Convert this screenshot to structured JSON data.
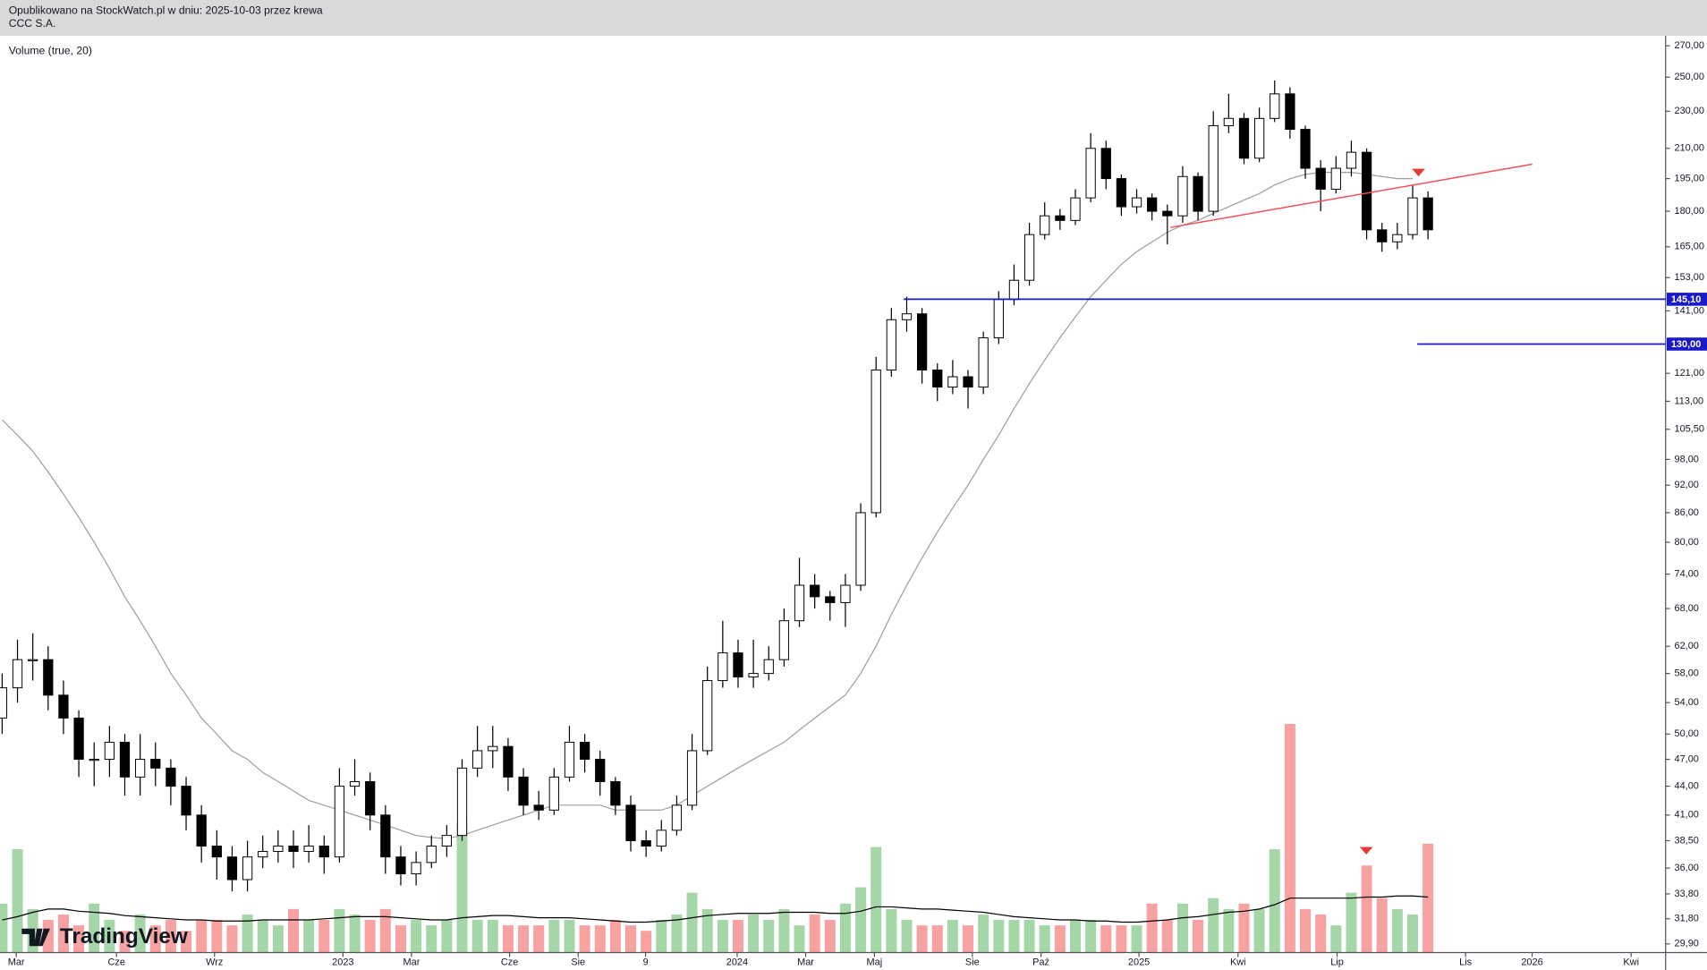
{
  "header": {
    "published": "Opublikowano na StockWatch.pl w dniu: 2025-10-03 przez krewa",
    "symbol": "CCC S.A."
  },
  "chart_data": {
    "type": "candlestick",
    "indicator_label": "Volume (true, 20)",
    "watermark": "TradingView",
    "log_scale": true,
    "ylim": [
      29.27,
      276.6
    ],
    "yticks": [
      {
        "value": 270,
        "label": "270,00"
      },
      {
        "value": 250,
        "label": "250,00"
      },
      {
        "value": 230,
        "label": "230,00"
      },
      {
        "value": 210,
        "label": "210,00"
      },
      {
        "value": 195,
        "label": "195,00"
      },
      {
        "value": 180,
        "label": "180,00"
      },
      {
        "value": 165,
        "label": "165,00"
      },
      {
        "value": 153,
        "label": "153,00"
      },
      {
        "value": 141,
        "label": "141,00"
      },
      {
        "value": 121,
        "label": "121,00"
      },
      {
        "value": 113,
        "label": "113,00"
      },
      {
        "value": 105.5,
        "label": "105,50"
      },
      {
        "value": 98,
        "label": "98,00"
      },
      {
        "value": 92,
        "label": "92,00"
      },
      {
        "value": 86,
        "label": "86,00"
      },
      {
        "value": 80,
        "label": "80,00"
      },
      {
        "value": 74,
        "label": "74,00"
      },
      {
        "value": 68,
        "label": "68,00"
      },
      {
        "value": 62,
        "label": "62,00"
      },
      {
        "value": 58,
        "label": "58,00"
      },
      {
        "value": 54,
        "label": "54,00"
      },
      {
        "value": 50,
        "label": "50,00"
      },
      {
        "value": 47,
        "label": "47,00"
      },
      {
        "value": 44,
        "label": "44,00"
      },
      {
        "value": 41,
        "label": "41,00"
      },
      {
        "value": 38.5,
        "label": "38,50"
      },
      {
        "value": 36,
        "label": "36,00"
      },
      {
        "value": 33.8,
        "label": "33,80"
      },
      {
        "value": 31.8,
        "label": "31,80"
      },
      {
        "value": 29.9,
        "label": "29,90"
      }
    ],
    "xlim": [
      -0.14,
      108.5
    ],
    "xticks": [
      {
        "value": 0.92,
        "label": "Mar"
      },
      {
        "value": 7.46,
        "label": "Cze"
      },
      {
        "value": 13.85,
        "label": "Wrz"
      },
      {
        "value": 22.23,
        "label": "2023"
      },
      {
        "value": 26.7,
        "label": "Mar"
      },
      {
        "value": 33.1,
        "label": "Cze"
      },
      {
        "value": 37.57,
        "label": "Sie"
      },
      {
        "value": 41.97,
        "label": "9"
      },
      {
        "value": 47.94,
        "label": "2024"
      },
      {
        "value": 52.41,
        "label": "Mar"
      },
      {
        "value": 56.89,
        "label": "Maj"
      },
      {
        "value": 63.28,
        "label": "Sie"
      },
      {
        "value": 67.76,
        "label": "Paź"
      },
      {
        "value": 74.15,
        "label": "2025"
      },
      {
        "value": 80.61,
        "label": "Kwi"
      },
      {
        "value": 87.07,
        "label": "Lip"
      },
      {
        "value": 95.45,
        "label": "Lis"
      },
      {
        "value": 99.79,
        "label": "2026"
      },
      {
        "value": 106.25,
        "label": "Kwi"
      }
    ],
    "open": [
      52,
      56,
      60,
      60,
      55,
      52,
      47,
      47,
      49,
      45,
      47,
      46,
      44,
      41,
      38,
      37,
      35,
      37,
      37.5,
      38,
      37.5,
      38,
      37,
      44,
      44.5,
      41,
      37,
      35.5,
      36.5,
      38,
      39,
      46,
      48,
      48.5,
      45,
      42,
      41.5,
      45,
      49,
      47,
      44.5,
      42,
      38.5,
      38,
      39.5,
      42,
      48,
      57,
      61,
      57.5,
      58,
      60,
      66,
      72,
      70,
      69,
      72,
      86,
      122,
      138,
      140,
      122,
      117,
      120,
      117,
      132,
      145,
      152,
      170,
      178,
      176,
      186,
      210,
      195,
      182,
      186,
      180,
      178,
      196,
      180,
      222,
      226,
      205,
      226,
      240,
      220,
      200,
      190,
      200,
      208,
      172,
      167,
      170,
      186
    ],
    "high": [
      58,
      63,
      64,
      62,
      57,
      53,
      49,
      51,
      50,
      50,
      49,
      47,
      45,
      42,
      39.5,
      38,
      38.5,
      39,
      39.5,
      39.5,
      40,
      39,
      46,
      47,
      45.5,
      42,
      38,
      37.5,
      39,
      40,
      47,
      51,
      51,
      49.5,
      46,
      43.5,
      46,
      51,
      50,
      48,
      45,
      43,
      39.5,
      40.5,
      43,
      50,
      59,
      66,
      63,
      63,
      62,
      68,
      77,
      74,
      71,
      74,
      88,
      126,
      142,
      146,
      142,
      124,
      125,
      122,
      134,
      148,
      158,
      175,
      184,
      181,
      190,
      218,
      214,
      197,
      190,
      188,
      183,
      201,
      198,
      230,
      240,
      229,
      232,
      248,
      244,
      222,
      204,
      206,
      214,
      210,
      175,
      175,
      192,
      189
    ],
    "low": [
      50,
      54,
      57,
      53,
      50,
      45,
      44,
      45,
      43,
      43,
      44,
      42,
      39.5,
      36.5,
      35,
      34,
      34,
      36,
      36.5,
      36,
      36.5,
      35.5,
      36.5,
      43,
      39.5,
      35.5,
      34.5,
      34.5,
      36,
      37,
      38.5,
      45,
      46,
      43.5,
      41,
      40.5,
      41,
      44.5,
      45.5,
      43,
      41,
      37.5,
      37,
      37.5,
      39,
      41.5,
      47.5,
      56,
      56,
      56,
      57,
      59,
      65,
      68,
      66,
      65,
      71,
      85,
      120,
      134,
      118,
      113,
      115,
      111,
      115,
      130,
      143,
      150,
      168,
      172,
      174,
      184,
      190,
      178,
      179,
      176,
      166,
      175,
      176,
      178,
      218,
      202,
      203,
      224,
      215,
      195,
      180,
      188,
      196,
      168,
      163,
      164,
      168,
      168
    ],
    "close": [
      56,
      60,
      60,
      55,
      52,
      47,
      47,
      49,
      45,
      47,
      46,
      44,
      41,
      38,
      37,
      35,
      37,
      37.5,
      38,
      37.5,
      38,
      37,
      44,
      44.5,
      41,
      37,
      35.5,
      36.5,
      38,
      39,
      46,
      48,
      48.5,
      45,
      42,
      41.5,
      45,
      49,
      47,
      44.5,
      42,
      38.5,
      38,
      39.5,
      42,
      48,
      57,
      61,
      57.5,
      58,
      60,
      66,
      72,
      70,
      69,
      72,
      86,
      122,
      138,
      140,
      122,
      117,
      120,
      117,
      132,
      145,
      152,
      170,
      178,
      176,
      186,
      210,
      195,
      182,
      186,
      180,
      178,
      196,
      180,
      222,
      226,
      205,
      226,
      240,
      220,
      200,
      190,
      200,
      208,
      172,
      167,
      170,
      186,
      172
    ],
    "volume": [
      45,
      95,
      40,
      30,
      35,
      25,
      45,
      30,
      20,
      35,
      25,
      30,
      20,
      30,
      30,
      25,
      35,
      30,
      25,
      40,
      30,
      30,
      40,
      35,
      30,
      40,
      25,
      30,
      25,
      30,
      120,
      30,
      30,
      25,
      25,
      25,
      30,
      30,
      25,
      25,
      30,
      25,
      20,
      30,
      35,
      55,
      40,
      30,
      30,
      35,
      30,
      40,
      25,
      35,
      30,
      45,
      60,
      97,
      40,
      30,
      25,
      25,
      30,
      25,
      35,
      30,
      30,
      30,
      25,
      25,
      30,
      30,
      25,
      25,
      25,
      45,
      30,
      45,
      30,
      50,
      40,
      45,
      40,
      95,
      210,
      40,
      35,
      25,
      55,
      80,
      50,
      40,
      35,
      100
    ],
    "volume_ma": [
      30,
      33,
      37,
      40,
      40,
      38,
      37,
      36,
      34,
      33,
      32,
      31,
      30,
      30,
      29,
      29,
      29,
      30,
      30,
      30,
      30,
      31,
      32,
      33,
      33,
      33,
      32,
      31,
      30,
      30,
      32,
      33,
      34,
      34,
      33,
      32,
      32,
      32,
      31,
      30,
      29,
      28,
      28,
      29,
      30,
      32,
      34,
      35,
      36,
      36,
      36,
      37,
      37,
      37,
      36,
      36,
      38,
      42,
      42,
      41,
      40,
      40,
      39,
      38,
      37,
      35,
      33,
      32,
      31,
      30,
      30,
      29,
      29,
      28,
      28,
      29,
      30,
      32,
      33,
      35,
      37,
      38,
      40,
      44,
      50,
      50,
      50,
      50,
      50,
      51,
      51,
      52,
      52,
      51
    ],
    "ma": [
      108,
      104,
      100,
      95,
      90,
      85,
      80,
      75,
      70,
      66,
      62,
      58,
      55,
      52,
      50,
      48,
      47,
      45.5,
      44.5,
      43.5,
      42.5,
      42,
      41.5,
      41,
      40.5,
      40,
      39.5,
      39,
      38.8,
      38.7,
      39,
      39.5,
      40,
      40.5,
      41,
      41.5,
      42,
      42,
      42,
      42,
      41.5,
      41.5,
      41.5,
      41.5,
      42,
      43,
      44,
      45,
      46,
      47,
      48,
      49,
      50.5,
      52,
      53.5,
      55,
      58,
      62,
      67,
      72,
      77,
      82,
      87,
      92,
      98,
      104,
      111,
      118,
      125,
      132,
      139,
      146,
      152,
      158,
      163,
      167,
      171,
      174,
      176,
      179,
      182,
      185,
      188,
      192,
      195,
      197,
      198,
      198,
      198,
      197,
      196,
      195,
      195,
      null
    ],
    "vlim": [
      0,
      260
    ],
    "colors": {
      "up": "#ffffff",
      "down": "#000000",
      "outline": "#000000",
      "volume_up": "#a5d6a7",
      "volume_down": "#f7a1a1",
      "ma": "#9e9e9e",
      "volume_ma": "#000000",
      "hline": "#1a1acd"
    },
    "trendline": {
      "x": [
        76.2,
        99.8
      ],
      "y": [
        173,
        202
      ],
      "color": "#f0505a"
    },
    "hlines": [
      {
        "value": 145.1,
        "label": "145,10",
        "x_start": 58.8
      },
      {
        "value": 130,
        "label": "130,00",
        "x_start": 92.3
      }
    ]
  }
}
